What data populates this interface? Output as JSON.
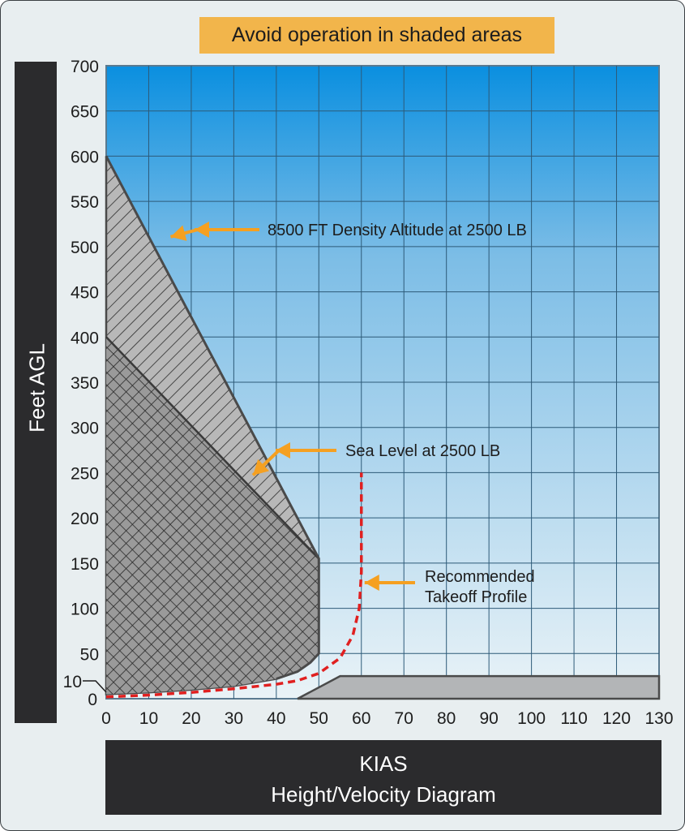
{
  "banner": "Avoid operation in shaded areas",
  "colors": {
    "sky_top": "#0a8fe0",
    "sky_bottom": "#eaf3f7",
    "hatch_region": "#b8b8b8",
    "crosshatch_region": "#9a9a9a",
    "takeoff_profile": "#e02020",
    "arrow": "#f5a021",
    "banner_bg": "#f2b54b"
  },
  "chart_data": {
    "type": "line",
    "title": "Height/Velocity Diagram",
    "xlabel": "KIAS",
    "ylabel": "Feet AGL",
    "xlim": [
      0,
      130
    ],
    "ylim": [
      0,
      700
    ],
    "x_ticks": [
      "0",
      "10",
      "20",
      "30",
      "40",
      "50",
      "60",
      "70",
      "80",
      "90",
      "100",
      "110",
      "120",
      "130"
    ],
    "y_ticks": [
      "0",
      "10",
      "50",
      "100",
      "150",
      "200",
      "250",
      "300",
      "350",
      "400",
      "450",
      "500",
      "550",
      "600",
      "650",
      "700"
    ],
    "grid": true,
    "series": [
      {
        "name": "8500 FT Density Altitude at 2500 LB",
        "x": [
          0,
          50,
          50,
          48,
          45,
          40,
          30,
          20,
          10,
          0
        ],
        "y": [
          600,
          155,
          50,
          40,
          30,
          22,
          14,
          10,
          7,
          5
        ]
      },
      {
        "name": "Sea Level at 2500 LB",
        "x": [
          0,
          50
        ],
        "y": [
          400,
          155
        ]
      },
      {
        "name": "Recommended Takeoff Profile",
        "x": [
          0,
          10,
          20,
          30,
          40,
          45,
          50,
          55,
          58,
          59.5,
          60,
          60
        ],
        "y": [
          2,
          4,
          7,
          11,
          16,
          20,
          28,
          45,
          70,
          100,
          140,
          250
        ]
      },
      {
        "name": "High speed shaded area",
        "x": [
          45,
          55,
          130,
          130,
          45
        ],
        "y": [
          0,
          25,
          25,
          0,
          0
        ]
      }
    ],
    "annotations": [
      {
        "text": "8500 FT Density Altitude at 2500 LB",
        "points_to": [
          14,
          500
        ]
      },
      {
        "text": "Sea Level at 2500 LB",
        "points_to": [
          33,
          240
        ]
      },
      {
        "text": "Recommended",
        "points_to": [
          60,
          125
        ]
      },
      {
        "text": "Takeoff Profile",
        "points_to": [
          60,
          125
        ]
      }
    ]
  }
}
